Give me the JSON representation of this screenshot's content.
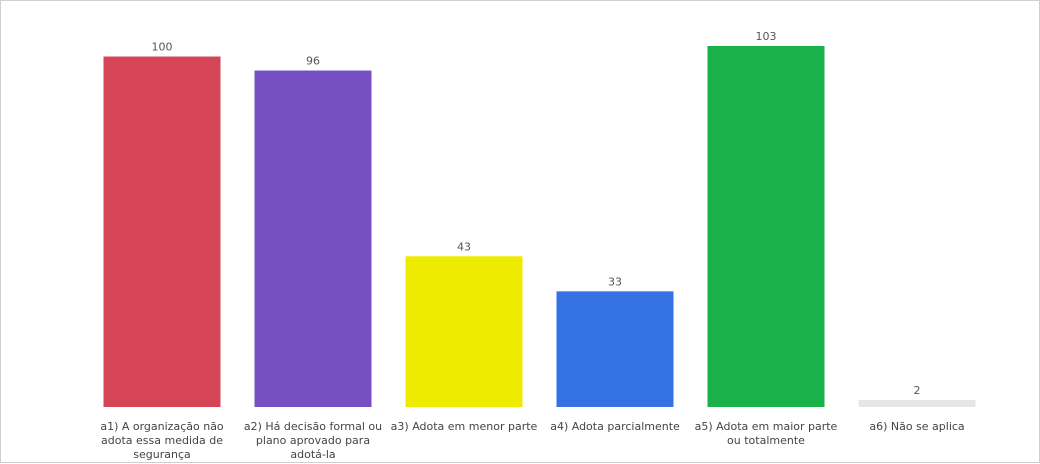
{
  "chart_data": {
    "type": "bar",
    "title": "",
    "xlabel": "",
    "ylabel": "",
    "ylim": [
      0,
      103
    ],
    "grid": false,
    "legend": "none",
    "categories": [
      "a1) A organização não adota essa medida de segurança",
      "a2) Há decisão formal ou plano aprovado para adotá-la",
      "a3) Adota em menor parte",
      "a4) Adota parcialmente",
      "a5) Adota em maior parte ou totalmente",
      "a6) Não se aplica"
    ],
    "values": [
      100,
      96,
      43,
      33,
      103,
      2
    ],
    "colors": [
      "#d64457",
      "#7650c2",
      "#eeea00",
      "#3573e5",
      "#1ab04a",
      "#e6e6e6"
    ]
  }
}
